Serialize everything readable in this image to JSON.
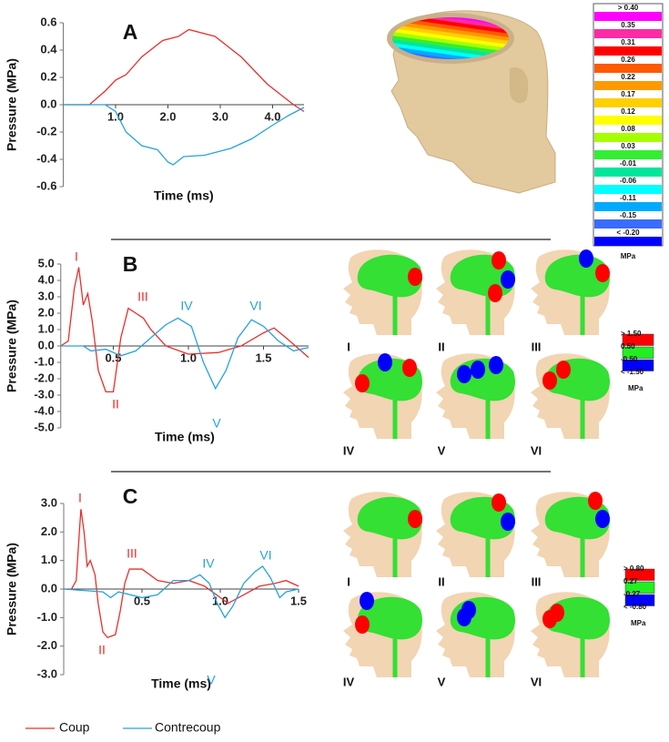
{
  "chart_data": [
    {
      "type": "line",
      "title": "A",
      "y_label": "Pressure (MPa)",
      "x_label": "Time (ms)",
      "xlim": [
        0,
        4.6
      ],
      "ylim": [
        -0.6,
        0.6
      ],
      "xticks": [
        {
          "value": 1,
          "label": "1.0"
        },
        {
          "value": 2,
          "label": "2.0"
        },
        {
          "value": 3,
          "label": "3.0"
        },
        {
          "value": 4,
          "label": "4.0"
        }
      ],
      "yticks": [
        0.6,
        0.4,
        0.2,
        {
          "value": 0,
          "label": "0.0"
        },
        -0.2,
        -0.4,
        -0.6
      ],
      "series": [
        {
          "name": "Coup",
          "color": "#e8302c",
          "x": [
            0,
            0.5,
            0.8,
            1.0,
            1.2,
            1.5,
            1.9,
            2.2,
            2.4,
            2.9,
            3.4,
            3.9,
            4.4,
            4.6
          ],
          "values": [
            0,
            0,
            0.1,
            0.18,
            0.22,
            0.35,
            0.47,
            0.5,
            0.55,
            0.5,
            0.35,
            0.15,
            0,
            -0.05
          ]
        },
        {
          "name": "Contrecoup",
          "color": "#27a3dc",
          "x": [
            0,
            0.8,
            1.0,
            1.2,
            1.5,
            1.8,
            2.0,
            2.1,
            2.3,
            2.7,
            3.2,
            3.6,
            4.0,
            4.3,
            4.6
          ],
          "values": [
            0,
            0,
            -0.05,
            -0.2,
            -0.3,
            -0.33,
            -0.42,
            -0.44,
            -0.38,
            -0.37,
            -0.32,
            -0.25,
            -0.15,
            -0.08,
            -0.02
          ]
        }
      ]
    },
    {
      "type": "line",
      "title": "B",
      "y_label": "Pressure (MPa)",
      "x_label": "Time (ms)",
      "xlim": [
        0.15,
        1.8
      ],
      "ylim": [
        -5,
        5
      ],
      "xticks": [
        0.5,
        {
          "value": 1,
          "label": "1.0"
        },
        1.5
      ],
      "yticks": [
        {
          "value": 5,
          "label": "5.0"
        },
        {
          "value": 4,
          "label": "4.0"
        },
        {
          "value": 3,
          "label": "3.0"
        },
        {
          "value": 2,
          "label": "2.0"
        },
        {
          "value": 1,
          "label": "1.0"
        },
        {
          "value": 0,
          "label": "0.0"
        },
        {
          "value": -1,
          "label": "-1.0"
        },
        {
          "value": -2,
          "label": "-2.0"
        },
        {
          "value": -3,
          "label": "-3.0"
        },
        {
          "value": -4,
          "label": "-4.0"
        },
        {
          "value": -5,
          "label": "-5.0"
        }
      ],
      "series": [
        {
          "name": "Coup",
          "color": "#e8302c",
          "x": [
            0.15,
            0.2,
            0.24,
            0.27,
            0.3,
            0.33,
            0.36,
            0.4,
            0.45,
            0.5,
            0.55,
            0.6,
            0.65,
            0.7,
            0.75,
            0.85,
            1.0,
            1.2,
            1.35,
            1.5,
            1.57,
            1.65,
            1.8
          ],
          "values": [
            0,
            0.3,
            3.5,
            4.8,
            2.5,
            3.2,
            1.5,
            -1.5,
            -2.8,
            -2.8,
            0.5,
            2.3,
            2.0,
            1.7,
            1.0,
            0,
            -0.5,
            -0.4,
            0,
            0.8,
            1.1,
            0.5,
            -0.7
          ]
        },
        {
          "name": "Contrecoup",
          "color": "#27a3dc",
          "x": [
            0.15,
            0.3,
            0.35,
            0.45,
            0.55,
            0.65,
            0.75,
            0.85,
            0.93,
            1.02,
            1.1,
            1.18,
            1.25,
            1.33,
            1.42,
            1.5,
            1.6,
            1.7,
            1.8
          ],
          "values": [
            0,
            0,
            -0.3,
            -0.2,
            -0.6,
            -0.3,
            0.5,
            1.3,
            1.7,
            1.2,
            -1.0,
            -2.6,
            -1.5,
            0.5,
            1.6,
            1.2,
            0.3,
            -0.3,
            -0.1
          ]
        }
      ],
      "annotations": [
        {
          "text": "I",
          "color": "#e8302c"
        },
        {
          "text": "II",
          "color": "#e8302c"
        },
        {
          "text": "III",
          "color": "#e8302c"
        },
        {
          "text": "IV",
          "color": "#27a3dc"
        },
        {
          "text": "V",
          "color": "#27a3dc"
        },
        {
          "text": "VI",
          "color": "#27a3dc"
        }
      ]
    },
    {
      "type": "line",
      "title": "C",
      "y_label": "Pressure (MPa)",
      "x_label": "Time (ms)",
      "xlim": [
        0,
        1.5
      ],
      "ylim": [
        -3,
        3
      ],
      "xticks": [
        0.5,
        {
          "value": 1,
          "label": "1.0"
        },
        1.5
      ],
      "yticks": [
        {
          "value": 3,
          "label": "3.0"
        },
        {
          "value": 2,
          "label": "2.0"
        },
        {
          "value": 1,
          "label": "1.0"
        },
        {
          "value": 0,
          "label": "0.0"
        },
        {
          "value": -1,
          "label": "-1.0"
        },
        {
          "value": -2,
          "label": "-2.0"
        },
        {
          "value": -3,
          "label": "-3.0"
        }
      ],
      "series": [
        {
          "name": "Coup",
          "color": "#e8302c",
          "x": [
            0,
            0.05,
            0.08,
            0.1,
            0.11,
            0.13,
            0.15,
            0.17,
            0.2,
            0.22,
            0.25,
            0.28,
            0.33,
            0.36,
            0.39,
            0.42,
            0.5,
            0.6,
            0.7,
            0.8,
            0.85,
            0.9,
            1.0,
            1.05,
            1.15,
            1.25,
            1.35,
            1.42,
            1.5
          ],
          "values": [
            0,
            0,
            0.3,
            2.0,
            2.8,
            2.0,
            0.8,
            1.0,
            0.5,
            -0.5,
            -1.5,
            -1.7,
            -1.6,
            -0.8,
            0.2,
            0.7,
            0.7,
            0.3,
            0.2,
            0.3,
            0.2,
            0.1,
            -0.3,
            -0.5,
            -0.2,
            0.1,
            0.2,
            0.3,
            0.1
          ]
        },
        {
          "name": "Contrecoup",
          "color": "#27a3dc",
          "x": [
            0,
            0.25,
            0.3,
            0.35,
            0.5,
            0.6,
            0.7,
            0.8,
            0.87,
            0.93,
            0.98,
            1.03,
            1.08,
            1.15,
            1.22,
            1.27,
            1.32,
            1.38,
            1.42,
            1.5
          ],
          "values": [
            0,
            -0.1,
            -0.3,
            -0.1,
            -0.3,
            -0.2,
            0.3,
            0.3,
            0.5,
            0.2,
            -0.5,
            -1.0,
            -0.6,
            0.2,
            0.6,
            0.8,
            0.4,
            -0.3,
            -0.1,
            0
          ]
        }
      ],
      "annotations": [
        {
          "text": "I",
          "color": "#e8302c"
        },
        {
          "text": "II",
          "color": "#e8302c"
        },
        {
          "text": "III",
          "color": "#e8302c"
        },
        {
          "text": "IV",
          "color": "#27a3dc"
        },
        {
          "text": "V",
          "color": "#27a3dc"
        },
        {
          "text": "VI",
          "color": "#27a3dc"
        }
      ]
    }
  ],
  "colorbars": [
    {
      "labels": [
        "> 0.40",
        "0.35",
        "0.31",
        "0.26",
        "0.22",
        "0.17",
        "0.12",
        "0.08",
        "0.03",
        "-0.01",
        "-0.06",
        "-0.11",
        "-0.15",
        "< -0.20"
      ],
      "colors": [
        "#ff00ff",
        "#ff2aa6",
        "#ff0000",
        "#ff5a00",
        "#ff9900",
        "#ffd000",
        "#ffff00",
        "#a6ff00",
        "#33ee33",
        "#00e69a",
        "#00ffff",
        "#00aaff",
        "#3a6cff",
        "#0000ff"
      ],
      "unit": "MPa"
    },
    {
      "labels": [
        "> 1.50",
        "0.50",
        "-0.50",
        "< -1.50"
      ],
      "colors": [
        "#ff0000",
        "#22ee22",
        "#0000ff"
      ],
      "unit": "MPa"
    },
    {
      "labels": [
        "> 0.80",
        "0.27",
        "-0.27",
        "< -0.80"
      ],
      "colors": [
        "#ff0000",
        "#22ee22",
        "#0000ff"
      ],
      "unit": "MPa"
    }
  ],
  "snapshots": [
    {
      "labels": [
        "I",
        "II",
        "III",
        "IV",
        "V",
        "VI"
      ]
    },
    {
      "labels": [
        "I",
        "II",
        "III",
        "IV",
        "V",
        "VI"
      ]
    }
  ]
}
